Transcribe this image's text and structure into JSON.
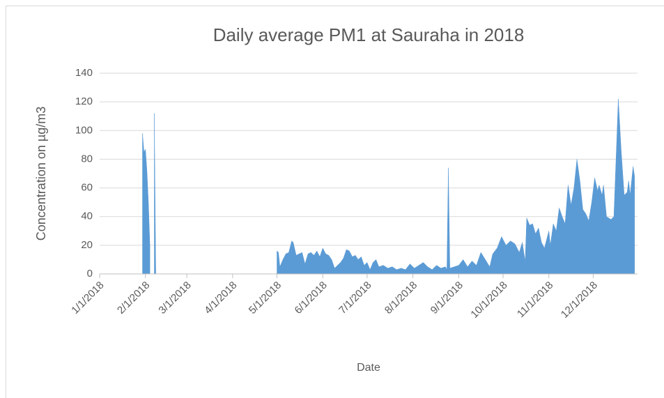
{
  "chart_data": {
    "type": "area",
    "title": "Daily average PM1 at Sauraha in 2018",
    "xlabel": "Date",
    "ylabel": "Concentration on µg/m3",
    "color": "#5b9bd5",
    "grid": true,
    "xlim": [
      "2018-01-01",
      "2018-12-31"
    ],
    "xticks": [
      {
        "value": "2018-01-01",
        "label": "1/1/2018"
      },
      {
        "value": "2018-02-01",
        "label": "2/1/2018"
      },
      {
        "value": "2018-03-01",
        "label": "3/1/2018"
      },
      {
        "value": "2018-04-01",
        "label": "4/1/2018"
      },
      {
        "value": "2018-05-01",
        "label": "5/1/2018"
      },
      {
        "value": "2018-06-01",
        "label": "6/1/2018"
      },
      {
        "value": "2018-07-01",
        "label": "7/1/2018"
      },
      {
        "value": "2018-08-01",
        "label": "8/1/2018"
      },
      {
        "value": "2018-09-01",
        "label": "9/1/2018"
      },
      {
        "value": "2018-10-01",
        "label": "10/1/2018"
      },
      {
        "value": "2018-11-01",
        "label": "11/1/2018"
      },
      {
        "value": "2018-12-01",
        "label": "12/1/2018"
      }
    ],
    "ylim": [
      0,
      140
    ],
    "yticks": [
      0,
      20,
      40,
      60,
      80,
      100,
      120,
      140
    ],
    "x": [
      "2018-01-30",
      "2018-01-31",
      "2018-02-01",
      "2018-02-02",
      "2018-02-03",
      "2018-02-04",
      "2018-02-05",
      "2018-02-07",
      "2018-02-08",
      "2018-02-09",
      "2018-05-01",
      "2018-05-02",
      "2018-05-03",
      "2018-05-05",
      "2018-05-07",
      "2018-05-09",
      "2018-05-11",
      "2018-05-12",
      "2018-05-14",
      "2018-05-16",
      "2018-05-18",
      "2018-05-20",
      "2018-05-22",
      "2018-05-24",
      "2018-05-26",
      "2018-05-28",
      "2018-05-30",
      "2018-06-01",
      "2018-06-03",
      "2018-06-05",
      "2018-06-07",
      "2018-06-09",
      "2018-06-11",
      "2018-06-13",
      "2018-06-15",
      "2018-06-17",
      "2018-06-19",
      "2018-06-21",
      "2018-06-23",
      "2018-06-25",
      "2018-06-27",
      "2018-06-29",
      "2018-07-01",
      "2018-07-03",
      "2018-07-05",
      "2018-07-07",
      "2018-07-09",
      "2018-07-12",
      "2018-07-15",
      "2018-07-18",
      "2018-07-21",
      "2018-07-24",
      "2018-07-27",
      "2018-07-30",
      "2018-08-02",
      "2018-08-05",
      "2018-08-08",
      "2018-08-11",
      "2018-08-14",
      "2018-08-17",
      "2018-08-20",
      "2018-08-23",
      "2018-08-24",
      "2018-08-25",
      "2018-08-26",
      "2018-08-29",
      "2018-09-01",
      "2018-09-04",
      "2018-09-07",
      "2018-09-10",
      "2018-09-13",
      "2018-09-16",
      "2018-09-19",
      "2018-09-22",
      "2018-09-24",
      "2018-09-27",
      "2018-09-30",
      "2018-10-03",
      "2018-10-06",
      "2018-10-09",
      "2018-10-12",
      "2018-10-14",
      "2018-10-16",
      "2018-10-17",
      "2018-10-19",
      "2018-10-21",
      "2018-10-23",
      "2018-10-25",
      "2018-10-27",
      "2018-10-29",
      "2018-11-01",
      "2018-11-02",
      "2018-11-04",
      "2018-11-06",
      "2018-11-08",
      "2018-11-10",
      "2018-11-12",
      "2018-11-14",
      "2018-11-16",
      "2018-11-18",
      "2018-11-20",
      "2018-11-22",
      "2018-11-24",
      "2018-11-26",
      "2018-11-28",
      "2018-11-30",
      "2018-12-02",
      "2018-12-04",
      "2018-12-05",
      "2018-12-07",
      "2018-12-08",
      "2018-12-10",
      "2018-12-13",
      "2018-12-15",
      "2018-12-18",
      "2018-12-20",
      "2018-12-22",
      "2018-12-24",
      "2018-12-25",
      "2018-12-26",
      "2018-12-28",
      "2018-12-29"
    ],
    "values": [
      98,
      85,
      87,
      72,
      50,
      20,
      null,
      112,
      0,
      null,
      16,
      15,
      5,
      10,
      14,
      15,
      23,
      22,
      13,
      14,
      15,
      7,
      14,
      15,
      13,
      16,
      12,
      18,
      14,
      13,
      10,
      4,
      6,
      8,
      11,
      17,
      16,
      12,
      13,
      10,
      12,
      6,
      8,
      3,
      8,
      10,
      5,
      6,
      4,
      5,
      3,
      4,
      3,
      7,
      4,
      6,
      8,
      5,
      3,
      6,
      4,
      5,
      3,
      74,
      4,
      5,
      6,
      10,
      5,
      9,
      6,
      15,
      10,
      5,
      14,
      18,
      26,
      20,
      23,
      21,
      15,
      22,
      9,
      39,
      34,
      35,
      28,
      32,
      22,
      18,
      30,
      20,
      35,
      30,
      46,
      40,
      35,
      62,
      48,
      60,
      80,
      65,
      45,
      42,
      37,
      50,
      67,
      58,
      62,
      55,
      62,
      40,
      38,
      40,
      122,
      85,
      55,
      57,
      65,
      55,
      75,
      68
    ]
  }
}
